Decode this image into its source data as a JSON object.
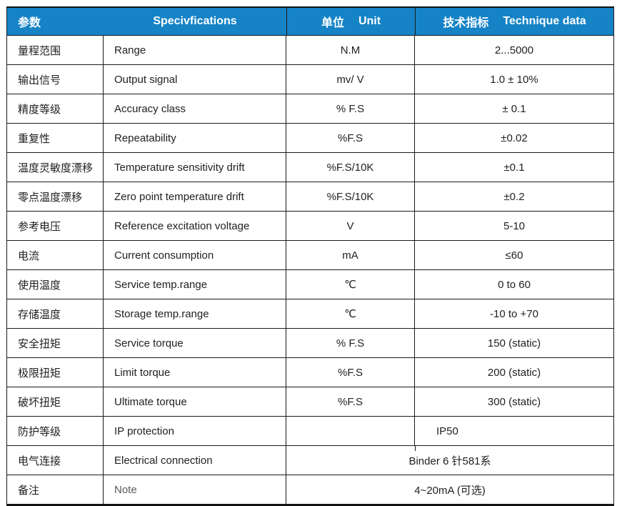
{
  "colors": {
    "header_bg": "#1583C6",
    "header_text": "#FFFFFF",
    "border": "#1A1A1A",
    "body_text": "#212121"
  },
  "header": {
    "param": "参数",
    "spec": "Specivfications",
    "unit_zh": "单位",
    "unit_en": "Unit",
    "tech_zh": "技术指标",
    "tech_en": "Technique data"
  },
  "rows": [
    {
      "param": "量程范围",
      "spec": "Range",
      "unit": "N.M",
      "value": "2...5000"
    },
    {
      "param": "输出信号",
      "spec": "Output signal",
      "unit": "mv/ V",
      "value": "1.0 ± 10%"
    },
    {
      "param": "精度等级",
      "spec": "Accuracy class",
      "unit": "% F.S",
      "value": "± 0.1"
    },
    {
      "param": "重复性",
      "spec": "Repeatability",
      "unit": "%F.S",
      "value": "±0.02"
    },
    {
      "param": "温度灵敏度漂移",
      "spec": "Temperature sensitivity drift",
      "unit": "%F.S/10K",
      "value": "±0.1"
    },
    {
      "param": "零点温度漂移",
      "spec": "Zero point temperature drift",
      "unit": "%F.S/10K",
      "value": "±0.2"
    },
    {
      "param": "参考电压",
      "spec": "Reference excitation voltage",
      "unit": "V",
      "value": "5-10"
    },
    {
      "param": "电流",
      "spec": "Current consumption",
      "unit": "mA",
      "value": "≤60"
    },
    {
      "param": "使用温度",
      "spec": "Service temp.range",
      "unit": "℃",
      "value": "0 to 60"
    },
    {
      "param": "存储温度",
      "spec": "Storage temp.range",
      "unit": "℃",
      "value": "-10 to +70"
    },
    {
      "param": "安全扭矩",
      "spec": "Service torque",
      "unit": "% F.S",
      "value": "150 (static)"
    },
    {
      "param": "极限扭矩",
      "spec": "Limit torque",
      "unit": "%F.S",
      "value": "200 (static)"
    },
    {
      "param": "破坏扭矩",
      "spec": "Ultimate torque",
      "unit": "%F.S",
      "value": "300 (static)"
    },
    {
      "param": "防护等级",
      "spec": "IP protection",
      "unit": "",
      "value": "IP50"
    },
    {
      "param": "电气连接",
      "spec": "Electrical connection",
      "unit": "",
      "value": "Binder 6 针581系",
      "merged": true
    },
    {
      "param": "备注",
      "spec": "Note",
      "unit": "",
      "value": "4~20mA (可选)",
      "merged": true
    }
  ]
}
